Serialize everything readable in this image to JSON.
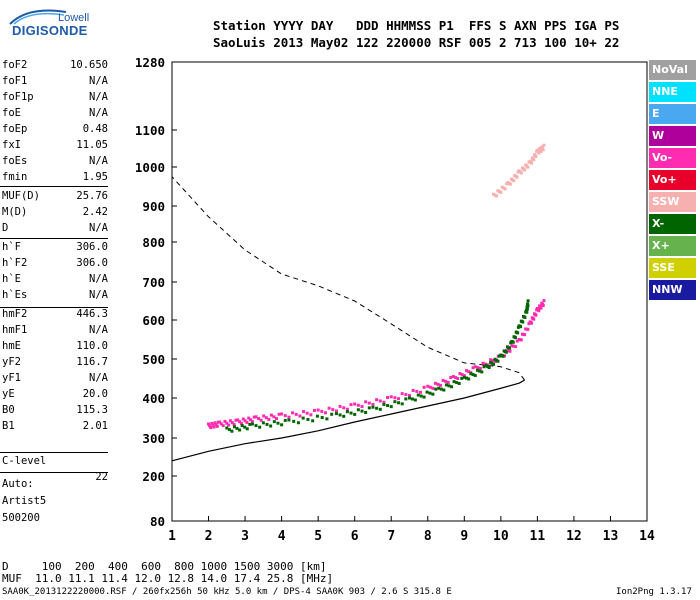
{
  "logo": {
    "line1": "Lowell",
    "line2": "DIGISONDE"
  },
  "header": {
    "row1": "Station YYYY DAY   DDD HHMMSS P1  FFS S AXN PPS IGA PS",
    "row2": "SaoLuis 2013 May02 122 220000 RSF 005 2 713 100 10+ 22"
  },
  "sidebar": {
    "group1": [
      {
        "k": "foF2",
        "v": "10.650"
      },
      {
        "k": "foF1",
        "v": "N/A"
      },
      {
        "k": "foF1p",
        "v": "N/A"
      },
      {
        "k": "foE",
        "v": "N/A"
      },
      {
        "k": "foEp",
        "v": "0.48"
      },
      {
        "k": "fxI",
        "v": "11.05"
      },
      {
        "k": "foEs",
        "v": "N/A"
      },
      {
        "k": "fmin",
        "v": "1.95"
      }
    ],
    "group2": [
      {
        "k": "MUF(D)",
        "v": "25.76"
      },
      {
        "k": "M(D)",
        "v": "2.42"
      },
      {
        "k": "D",
        "v": "N/A"
      }
    ],
    "group3": [
      {
        "k": "h`F",
        "v": "306.0"
      },
      {
        "k": "h`F2",
        "v": "306.0"
      },
      {
        "k": "h`E",
        "v": "N/A"
      },
      {
        "k": "h`Es",
        "v": "N/A"
      }
    ],
    "group4": [
      {
        "k": "hmF2",
        "v": "446.3"
      },
      {
        "k": "hmF1",
        "v": "N/A"
      },
      {
        "k": "hmE",
        "v": "110.0"
      },
      {
        "k": "yF2",
        "v": "116.7"
      },
      {
        "k": "yF1",
        "v": "N/A"
      },
      {
        "k": "yE",
        "v": "20.0"
      },
      {
        "k": "B0",
        "v": "115.3"
      },
      {
        "k": "B1",
        "v": "2.01"
      }
    ],
    "clevel": {
      "k": "C-level",
      "v": "22"
    },
    "auto": [
      "Auto:",
      "Artist5",
      "500200"
    ]
  },
  "legend": [
    {
      "label": "NoVal",
      "color": "#a0a0a0"
    },
    {
      "label": "NNE",
      "color": "#00e0ff"
    },
    {
      "label": "E",
      "color": "#4aa8f0"
    },
    {
      "label": "W",
      "color": "#b0009c"
    },
    {
      "label": "Vo-",
      "color": "#ff2bb0"
    },
    {
      "label": "Vo+",
      "color": "#e8002a"
    },
    {
      "label": "SSW",
      "color": "#f6b0b0"
    },
    {
      "label": "X-",
      "color": "#006400"
    },
    {
      "label": "X+",
      "color": "#66b24c"
    },
    {
      "label": "SSE",
      "color": "#d0d000"
    },
    {
      "label": "NNW",
      "color": "#1a1aa0"
    }
  ],
  "bottom": {
    "row1": "D     100  200  400  600  800 1000 1500 3000 [km]",
    "row2": "MUF  11.0 11.1 11.4 12.0 12.8 14.0 17.4 25.8 [MHz]"
  },
  "footer": {
    "left": "SAA0K_2013122220000.RSF / 260fx256h 50 kHz 5.0 km / DPS-4 SAA0K 903 / 2.6 S 315.8 E",
    "right": "Ion2Png 1.3.17"
  },
  "chart_data": {
    "type": "scatter",
    "xlabel": "",
    "ylabel": "",
    "xlim": [
      1,
      14
    ],
    "ylim": [
      80,
      1280
    ],
    "xticks": [
      1,
      2,
      3,
      4,
      5,
      6,
      7,
      8,
      9,
      10,
      11,
      12,
      13,
      14
    ],
    "yticks": [
      80,
      200,
      300,
      400,
      500,
      600,
      700,
      800,
      900,
      1000,
      1100,
      1280
    ],
    "series": [
      {
        "name": "Vo-",
        "color": "#ff2bb0",
        "points": [
          [
            2.0,
            330
          ],
          [
            2.3,
            335
          ],
          [
            2.8,
            340
          ],
          [
            3.3,
            348
          ],
          [
            4.0,
            355
          ],
          [
            5.0,
            365
          ],
          [
            6.0,
            380
          ],
          [
            7.0,
            398
          ],
          [
            8.0,
            425
          ],
          [
            8.7,
            450
          ],
          [
            9.3,
            475
          ],
          [
            10.0,
            505
          ],
          [
            10.5,
            545
          ],
          [
            10.8,
            590
          ],
          [
            11.0,
            625
          ],
          [
            11.2,
            648
          ]
        ]
      },
      {
        "name": "X-",
        "color": "#006400",
        "points": [
          [
            2.5,
            320
          ],
          [
            3.2,
            330
          ],
          [
            4.2,
            340
          ],
          [
            5.5,
            356
          ],
          [
            6.5,
            372
          ],
          [
            7.5,
            395
          ],
          [
            8.3,
            420
          ],
          [
            9.0,
            448
          ],
          [
            9.6,
            478
          ],
          [
            10.0,
            505
          ],
          [
            10.3,
            540
          ],
          [
            10.5,
            580
          ],
          [
            10.7,
            620
          ],
          [
            10.75,
            648
          ]
        ]
      },
      {
        "name": "SSW",
        "color": "#f6b0b0",
        "points": [
          [
            9.8,
            925
          ],
          [
            10.2,
            955
          ],
          [
            10.5,
            985
          ],
          [
            10.8,
            1010
          ],
          [
            11.0,
            1040
          ],
          [
            11.2,
            1055
          ]
        ]
      }
    ],
    "profile_curve": [
      [
        1.0,
        240
      ],
      [
        2.0,
        265
      ],
      [
        3.0,
        285
      ],
      [
        4.0,
        300
      ],
      [
        5.0,
        318
      ],
      [
        6.0,
        340
      ],
      [
        7.0,
        360
      ],
      [
        8.0,
        380
      ],
      [
        9.0,
        400
      ],
      [
        10.0,
        425
      ],
      [
        10.5,
        438
      ],
      [
        10.65,
        446
      ],
      [
        10.5,
        465
      ],
      [
        10.0,
        480
      ],
      [
        9.0,
        490
      ],
      [
        8.0,
        530
      ],
      [
        7.0,
        590
      ],
      [
        6.0,
        650
      ],
      [
        5.0,
        690
      ],
      [
        4.0,
        720
      ],
      [
        3.0,
        780
      ],
      [
        2.0,
        870
      ],
      [
        1.0,
        975
      ]
    ],
    "grid": false,
    "legend_position": "right"
  }
}
